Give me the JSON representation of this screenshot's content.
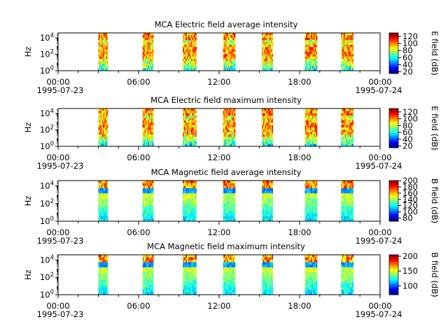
{
  "chart_data": [
    {
      "type": "heatmap",
      "title": "MCA  Electric field average intensity",
      "ylabel": "Hz",
      "colorbar_label": "E field (dB)",
      "x_ticks": [
        "00:00",
        "06:00",
        "12:00",
        "18:00",
        "00:00"
      ],
      "x_start_date": "1995-07-23",
      "x_end_date": "1995-07-24",
      "y_scale": "log",
      "y_ticks": [
        "0",
        "2",
        "4"
      ],
      "colorbar_ticks": [
        "20",
        "40",
        "60",
        "80",
        "100",
        "120"
      ],
      "colorbar_range": [
        15,
        130
      ],
      "passes_hours": [
        [
          3.0,
          3.7
        ],
        [
          6.3,
          7.1
        ],
        [
          9.3,
          10.3
        ],
        [
          12.3,
          13.2
        ],
        [
          15.2,
          16.0
        ],
        [
          18.4,
          19.3
        ],
        [
          21.1,
          22.0
        ]
      ],
      "field": "E"
    },
    {
      "type": "heatmap",
      "title": "MCA  Electric field maximum intensity",
      "ylabel": "Hz",
      "colorbar_label": "E field (dB)",
      "x_ticks": [
        "00:00",
        "06:00",
        "12:00",
        "18:00",
        "00:00"
      ],
      "x_start_date": "1995-07-23",
      "x_end_date": "1995-07-24",
      "y_scale": "log",
      "y_ticks": [
        "0",
        "2",
        "4"
      ],
      "colorbar_ticks": [
        "20",
        "40",
        "60",
        "80",
        "100",
        "120"
      ],
      "colorbar_range": [
        15,
        130
      ],
      "passes_hours": [
        [
          3.0,
          3.7
        ],
        [
          6.3,
          7.1
        ],
        [
          9.3,
          10.3
        ],
        [
          12.3,
          13.2
        ],
        [
          15.2,
          16.0
        ],
        [
          18.4,
          19.3
        ],
        [
          21.1,
          22.0
        ]
      ],
      "field": "E"
    },
    {
      "type": "heatmap",
      "title": "MCA  Magnetic field average intensity",
      "ylabel": "Hz",
      "colorbar_label": "B field (dB)",
      "x_ticks": [
        "00:00",
        "06:00",
        "12:00",
        "18:00",
        "00:00"
      ],
      "x_start_date": "1995-07-23",
      "x_end_date": "1995-07-24",
      "y_scale": "log",
      "y_ticks": [
        "0",
        "2",
        "4"
      ],
      "colorbar_ticks": [
        "80",
        "100",
        "120",
        "140",
        "160",
        "180",
        "200"
      ],
      "colorbar_range": [
        70,
        200
      ],
      "passes_hours": [
        [
          3.0,
          3.7
        ],
        [
          6.3,
          7.1
        ],
        [
          9.3,
          10.3
        ],
        [
          12.3,
          13.2
        ],
        [
          15.2,
          16.0
        ],
        [
          18.4,
          19.3
        ],
        [
          21.1,
          22.0
        ]
      ],
      "field": "B"
    },
    {
      "type": "heatmap",
      "title": "MCA  Magnetic field maximum intensity",
      "ylabel": "Hz",
      "colorbar_label": "B field (dB)",
      "x_ticks": [
        "00:00",
        "06:00",
        "12:00",
        "18:00",
        "00:00"
      ],
      "x_start_date": "1995-07-23",
      "x_end_date": "1995-07-24",
      "y_scale": "log",
      "y_ticks": [
        "0",
        "2",
        "4"
      ],
      "colorbar_ticks": [
        "100",
        "150",
        "200"
      ],
      "colorbar_range": [
        70,
        205
      ],
      "passes_hours": [
        [
          3.0,
          3.7
        ],
        [
          6.3,
          7.1
        ],
        [
          9.3,
          10.3
        ],
        [
          12.3,
          13.2
        ],
        [
          15.2,
          16.0
        ],
        [
          18.4,
          19.3
        ],
        [
          21.1,
          22.0
        ]
      ],
      "field": "B"
    }
  ]
}
